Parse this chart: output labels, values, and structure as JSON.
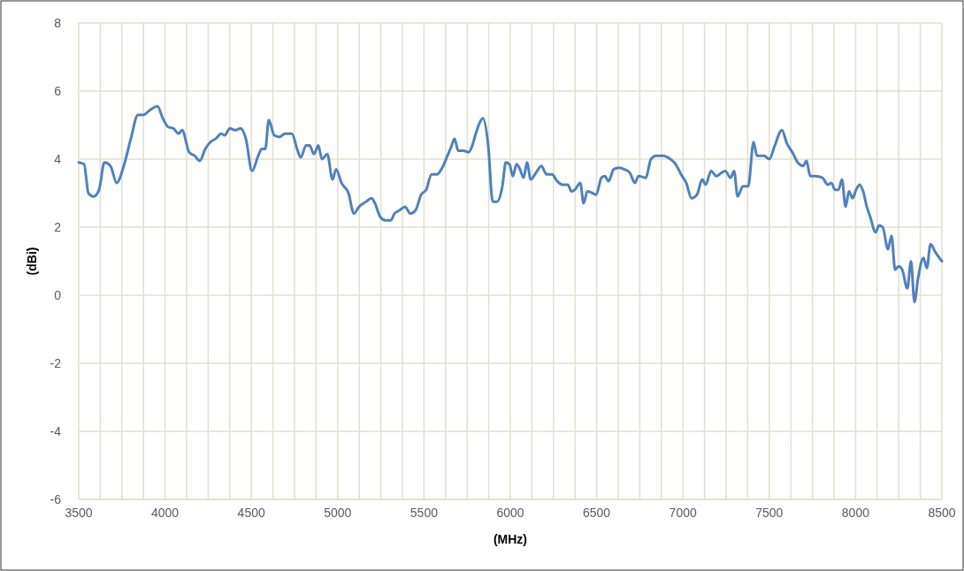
{
  "chart_data": {
    "type": "line",
    "xlabel": "(MHz)",
    "ylabel": "(dBi)",
    "grid": true,
    "marker": "none",
    "line_style": "solid",
    "xlim": [
      3500,
      8500
    ],
    "ylim": [
      -6,
      8
    ],
    "yticks": [
      -6,
      -4,
      -2,
      0,
      2,
      4,
      6,
      8
    ],
    "xticks": [
      3500,
      {
        "value": 3625,
        "label": null
      },
      {
        "value": 3750,
        "label": null
      },
      {
        "value": 3875,
        "label": null
      },
      4000,
      {
        "value": 4125,
        "label": null
      },
      {
        "value": 4250,
        "label": null
      },
      {
        "value": 4375,
        "label": null
      },
      4500,
      {
        "value": 4625,
        "label": null
      },
      {
        "value": 4750,
        "label": null
      },
      {
        "value": 4875,
        "label": null
      },
      5000,
      {
        "value": 5125,
        "label": null
      },
      {
        "value": 5250,
        "label": null
      },
      {
        "value": 5375,
        "label": null
      },
      5500,
      {
        "value": 5625,
        "label": null
      },
      {
        "value": 5750,
        "label": null
      },
      {
        "value": 5875,
        "label": null
      },
      6000,
      {
        "value": 6125,
        "label": null
      },
      {
        "value": 6250,
        "label": null
      },
      {
        "value": 6375,
        "label": null
      },
      6500,
      {
        "value": 6625,
        "label": null
      },
      {
        "value": 6750,
        "label": null
      },
      {
        "value": 6875,
        "label": null
      },
      7000,
      {
        "value": 7125,
        "label": null
      },
      {
        "value": 7250,
        "label": null
      },
      {
        "value": 7375,
        "label": null
      },
      7500,
      {
        "value": 7625,
        "label": null
      },
      {
        "value": 7750,
        "label": null
      },
      {
        "value": 7875,
        "label": null
      },
      8000,
      {
        "value": 8125,
        "label": null
      },
      {
        "value": 8250,
        "label": null
      },
      {
        "value": 8375,
        "label": null
      },
      8500
    ],
    "x": [
      3500,
      3531,
      3556,
      3587,
      3618,
      3649,
      3684,
      3720,
      3761,
      3802,
      3843,
      3874,
      3915,
      3956,
      3987,
      4017,
      4048,
      4079,
      4099,
      4140,
      4171,
      4202,
      4233,
      4263,
      4294,
      4325,
      4345,
      4376,
      4407,
      4438,
      4468,
      4504,
      4540,
      4560,
      4581,
      4601,
      4632,
      4663,
      4694,
      4735,
      4765,
      4786,
      4817,
      4837,
      4863,
      4888,
      4909,
      4940,
      4970,
      4991,
      5022,
      5063,
      5094,
      5124,
      5165,
      5196,
      5216,
      5247,
      5278,
      5308,
      5329,
      5360,
      5390,
      5421,
      5452,
      5483,
      5513,
      5544,
      5575,
      5606,
      5636,
      5657,
      5677,
      5698,
      5729,
      5759,
      5780,
      5800,
      5821,
      5841,
      5872,
      5898,
      5923,
      5954,
      5974,
      5995,
      6015,
      6036,
      6056,
      6077,
      6097,
      6118,
      6149,
      6180,
      6210,
      6241,
      6272,
      6302,
      6333,
      6354,
      6374,
      6405,
      6425,
      6446,
      6476,
      6497,
      6528,
      6548,
      6569,
      6599,
      6630,
      6661,
      6692,
      6722,
      6743,
      6784,
      6815,
      6845,
      6886,
      6927,
      6958,
      6989,
      7019,
      7050,
      7081,
      7112,
      7132,
      7163,
      7194,
      7224,
      7245,
      7276,
      7296,
      7317,
      7347,
      7378,
      7409,
      7429,
      7470,
      7501,
      7532,
      7573,
      7603,
      7634,
      7665,
      7696,
      7716,
      7737,
      7767,
      7808,
      7839,
      7860,
      7880,
      7901,
      7921,
      7942,
      7962,
      7983,
      8003,
      8024,
      8044,
      8065,
      8085,
      8116,
      8136,
      8157,
      8188,
      8208,
      8229,
      8249,
      8270,
      8300,
      8321,
      8341,
      8362,
      8393,
      8413,
      8434,
      8464,
      8500
    ],
    "series": [
      {
        "color": "#4f81bd",
        "values": [
          3.9,
          3.85,
          3.0,
          2.9,
          3.1,
          3.9,
          3.8,
          3.3,
          3.8,
          4.6,
          5.3,
          5.3,
          5.45,
          5.55,
          5.2,
          4.95,
          4.9,
          4.75,
          4.85,
          4.2,
          4.1,
          3.95,
          4.3,
          4.5,
          4.6,
          4.75,
          4.7,
          4.9,
          4.85,
          4.9,
          4.6,
          3.65,
          4.1,
          4.3,
          4.3,
          5.15,
          4.7,
          4.65,
          4.75,
          4.75,
          4.3,
          4.05,
          4.4,
          4.4,
          4.15,
          4.4,
          4.0,
          4.15,
          3.4,
          3.7,
          3.3,
          3.0,
          2.4,
          2.6,
          2.75,
          2.85,
          2.7,
          2.3,
          2.2,
          2.2,
          2.4,
          2.5,
          2.6,
          2.4,
          2.5,
          2.95,
          3.1,
          3.55,
          3.55,
          3.75,
          4.1,
          4.35,
          4.6,
          4.25,
          4.25,
          4.2,
          4.4,
          4.75,
          5.05,
          5.2,
          4.4,
          2.75,
          2.75,
          3.2,
          3.9,
          3.85,
          3.5,
          3.85,
          3.7,
          3.45,
          3.9,
          3.4,
          3.6,
          3.8,
          3.55,
          3.55,
          3.35,
          3.25,
          3.25,
          3.05,
          3.1,
          3.3,
          2.7,
          3.05,
          3.0,
          2.95,
          3.45,
          3.5,
          3.35,
          3.7,
          3.75,
          3.7,
          3.6,
          3.3,
          3.5,
          3.45,
          4.0,
          4.1,
          4.1,
          4.0,
          3.85,
          3.55,
          3.3,
          2.85,
          2.95,
          3.4,
          3.25,
          3.65,
          3.5,
          3.6,
          3.65,
          3.45,
          3.65,
          2.9,
          3.2,
          3.2,
          4.5,
          4.1,
          4.1,
          4.0,
          4.4,
          4.85,
          4.45,
          4.2,
          3.9,
          3.8,
          3.95,
          3.5,
          3.5,
          3.45,
          3.25,
          3.3,
          3.1,
          3.1,
          3.4,
          2.6,
          3.05,
          2.85,
          3.1,
          3.25,
          3.05,
          2.6,
          2.3,
          1.85,
          2.05,
          2.0,
          1.35,
          1.75,
          0.75,
          0.85,
          0.75,
          0.2,
          1.0,
          -0.2,
          0.5,
          1.1,
          0.8,
          1.5,
          1.25,
          1.0
        ]
      }
    ]
  }
}
